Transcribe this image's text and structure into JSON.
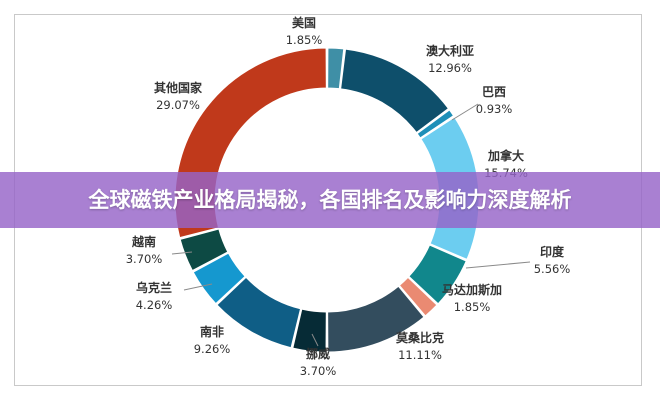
{
  "banner": {
    "title": "全球磁铁产业格局揭秘，各国排名及影响力深度解析"
  },
  "chart_data": {
    "type": "pie",
    "subtype": "donut",
    "title": "",
    "legend": "none",
    "start_angle_deg": 0,
    "direction": "clockwise",
    "slices": [
      {
        "name": "美国",
        "value": 1.85,
        "label": "1.85%",
        "color": "#3f8fa6"
      },
      {
        "name": "澳大利亚",
        "value": 12.96,
        "label": "12.96%",
        "color": "#0e4f6b"
      },
      {
        "name": "巴西",
        "value": 0.93,
        "label": "0.93%",
        "color": "#1d8fb8"
      },
      {
        "name": "加拿大",
        "value": 15.74,
        "label": "15.74%",
        "color": "#6ccdf0"
      },
      {
        "name": "印度",
        "value": 5.56,
        "label": "5.56%",
        "color": "#11878c"
      },
      {
        "name": "马达加斯加",
        "value": 1.85,
        "label": "1.85%",
        "color": "#ea8a72"
      },
      {
        "name": "莫桑比克",
        "value": 11.11,
        "label": "11.11%",
        "color": "#334d5e"
      },
      {
        "name": "挪威",
        "value": 3.7,
        "label": "3.70%",
        "color": "#062b36"
      },
      {
        "name": "南非",
        "value": 9.26,
        "label": "9.26%",
        "color": "#0f5e86"
      },
      {
        "name": "乌克兰",
        "value": 4.26,
        "label": "4.26%",
        "color": "#1598cf"
      },
      {
        "name": "越南",
        "value": 3.7,
        "label": "3.70%",
        "color": "#0d4a44"
      },
      {
        "name": "其他国家",
        "value": 29.07,
        "label": "29.07%",
        "color": "#c0391b"
      }
    ]
  }
}
